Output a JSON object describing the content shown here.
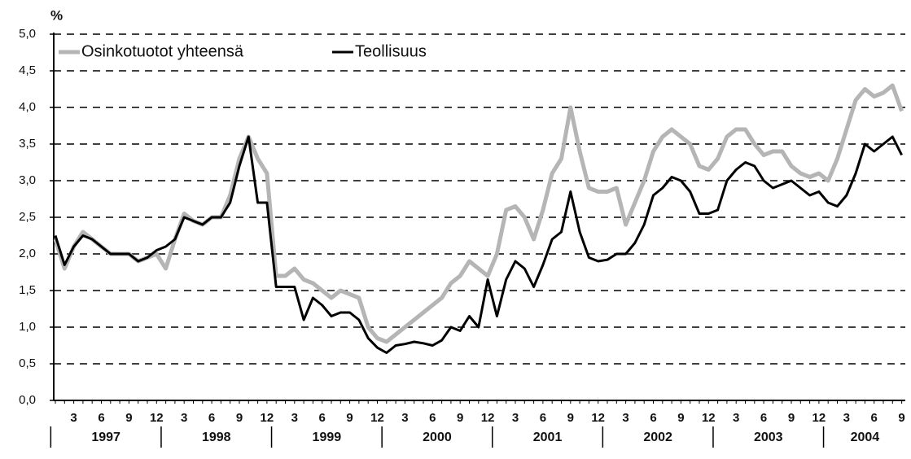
{
  "chart_data": {
    "type": "line",
    "y_unit": "%",
    "categories": [
      null,
      null,
      "3",
      null,
      null,
      "6",
      null,
      null,
      "9",
      null,
      null,
      "12",
      null,
      null,
      "3",
      null,
      null,
      "6",
      null,
      null,
      "9",
      null,
      null,
      "12",
      null,
      null,
      "3",
      null,
      null,
      "6",
      null,
      null,
      "9",
      null,
      null,
      "12",
      null,
      null,
      "3",
      null,
      null,
      "6",
      null,
      null,
      "9",
      null,
      null,
      "12",
      null,
      null,
      "3",
      null,
      null,
      "6",
      null,
      null,
      "9",
      null,
      null,
      "12",
      null,
      null,
      "3",
      null,
      null,
      "6",
      null,
      null,
      "9",
      null,
      null,
      "12",
      null,
      null,
      "3",
      null,
      null,
      "6",
      null,
      null,
      "9",
      null,
      null,
      "12",
      null,
      null,
      "3",
      null,
      null,
      "6",
      null,
      null,
      "9"
    ],
    "years": [
      "1997",
      "1998",
      "1999",
      "2000",
      "2001",
      "2002",
      "2003",
      "2004"
    ],
    "series": [
      {
        "name": "Osinkotuotot yhteensä",
        "color": "#b5b5b5",
        "values": [
          2.2,
          1.8,
          2.1,
          2.3,
          2.2,
          2.1,
          2.0,
          2.0,
          2.0,
          1.9,
          1.95,
          2.0,
          1.8,
          2.2,
          2.55,
          2.45,
          2.4,
          2.5,
          2.5,
          2.8,
          3.3,
          3.6,
          3.3,
          3.1,
          1.7,
          1.7,
          1.8,
          1.65,
          1.6,
          1.5,
          1.4,
          1.5,
          1.45,
          1.4,
          1.0,
          0.85,
          0.8,
          0.9,
          1.0,
          1.1,
          1.2,
          1.3,
          1.4,
          1.6,
          1.7,
          1.9,
          1.8,
          1.7,
          2.0,
          2.6,
          2.65,
          2.5,
          2.2,
          2.6,
          3.1,
          3.3,
          4.0,
          3.4,
          2.9,
          2.85,
          2.85,
          2.9,
          2.4,
          2.7,
          3.0,
          3.4,
          3.6,
          3.7,
          3.6,
          3.5,
          3.2,
          3.15,
          3.3,
          3.6,
          3.7,
          3.7,
          3.5,
          3.35,
          3.4,
          3.4,
          3.2,
          3.1,
          3.05,
          3.1,
          3.0,
          3.3,
          3.7,
          4.1,
          4.25,
          4.15,
          4.2,
          4.3,
          3.95
        ]
      },
      {
        "name": "Teollisuus",
        "color": "#000000",
        "values": [
          2.25,
          1.85,
          2.1,
          2.25,
          2.2,
          2.1,
          2.0,
          2.0,
          2.0,
          1.9,
          1.95,
          2.05,
          2.1,
          2.2,
          2.5,
          2.45,
          2.4,
          2.5,
          2.5,
          2.7,
          3.2,
          3.6,
          2.7,
          2.7,
          1.55,
          1.55,
          1.55,
          1.1,
          1.4,
          1.3,
          1.15,
          1.2,
          1.2,
          1.1,
          0.85,
          0.72,
          0.65,
          0.75,
          0.77,
          0.8,
          0.78,
          0.75,
          0.82,
          1.0,
          0.95,
          1.15,
          1.0,
          1.65,
          1.15,
          1.65,
          1.9,
          1.8,
          1.55,
          1.85,
          2.2,
          2.3,
          2.85,
          2.3,
          1.95,
          1.9,
          1.92,
          2.0,
          2.0,
          2.15,
          2.4,
          2.8,
          2.9,
          3.05,
          3.0,
          2.85,
          2.55,
          2.55,
          2.6,
          3.0,
          3.15,
          3.25,
          3.2,
          3.0,
          2.9,
          2.95,
          3.0,
          2.9,
          2.8,
          2.85,
          2.7,
          2.65,
          2.8,
          3.1,
          3.5,
          3.4,
          3.5,
          3.6,
          3.35
        ]
      }
    ],
    "ylim": [
      0,
      5
    ],
    "yticks": [
      {
        "value": 0,
        "label": "0,0"
      },
      {
        "value": 0.5,
        "label": "0,5"
      },
      {
        "value": 1,
        "label": "1,0"
      },
      {
        "value": 1.5,
        "label": "1,5"
      },
      {
        "value": 2,
        "label": "2,0"
      },
      {
        "value": 2.5,
        "label": "2,5"
      },
      {
        "value": 3,
        "label": "3,0"
      },
      {
        "value": 3.5,
        "label": "3,5"
      },
      {
        "value": 4,
        "label": "4,0"
      },
      {
        "value": 4.5,
        "label": "4,5"
      },
      {
        "value": 5,
        "label": "5,0"
      }
    ],
    "grid": true
  }
}
